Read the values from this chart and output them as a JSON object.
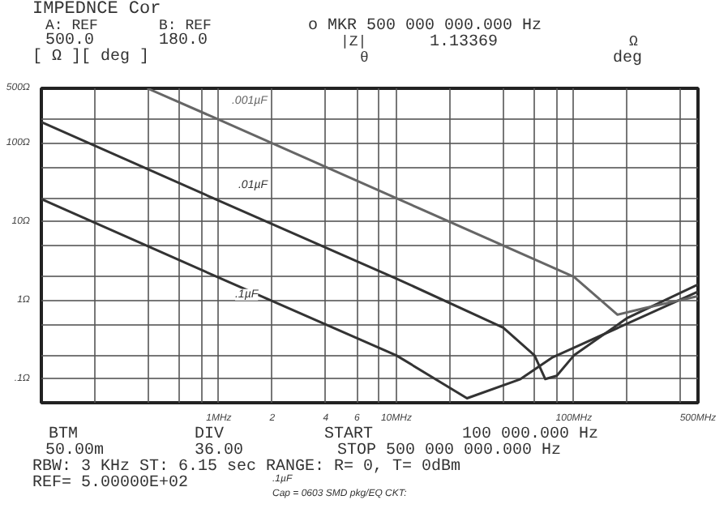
{
  "chart_data": {
    "type": "line",
    "title": "IMPEDNCE Cor",
    "series": [
      {
        "name": ".1µF",
        "color": "#333333",
        "x": [
          0.1,
          1,
          10,
          25,
          50,
          76,
          100,
          500
        ],
        "values": [
          19.5,
          1.95,
          0.2,
          0.057,
          0.1,
          0.19,
          0.25,
          1.3
        ]
      },
      {
        "name": ".01µF",
        "color": "#333333",
        "x": [
          0.1,
          1,
          10,
          40,
          60,
          69,
          80,
          100,
          200,
          500
        ],
        "values": [
          186,
          18.6,
          1.9,
          0.45,
          0.2,
          0.1,
          0.11,
          0.2,
          0.6,
          1.6
        ]
      },
      {
        "name": ".001µF",
        "color": "#666666",
        "x": [
          0.395,
          1,
          10,
          100,
          176,
          250,
          500
        ],
        "values": [
          500,
          200,
          20,
          2,
          0.66,
          0.8,
          1.13369
        ]
      }
    ],
    "log": "xy",
    "xlim": [
      0.1,
      500
    ],
    "ylim": [
      0.05,
      500
    ],
    "xticks": [
      {
        "value": 0.2,
        "label": null
      },
      {
        "value": 0.4,
        "label": null
      },
      {
        "value": 0.6,
        "label": null
      },
      {
        "value": 0.8,
        "label": null
      },
      {
        "value": 1,
        "label": "1MHz"
      },
      {
        "value": 2,
        "label": "2"
      },
      {
        "value": 4,
        "label": "4"
      },
      {
        "value": 6,
        "label": "6"
      },
      {
        "value": 8,
        "label": null
      },
      {
        "value": 10,
        "label": "10MHz"
      },
      {
        "value": 20,
        "label": null
      },
      {
        "value": 40,
        "label": null
      },
      {
        "value": 60,
        "label": null
      },
      {
        "value": 80,
        "label": null
      },
      {
        "value": 100,
        "label": "100MHz"
      },
      {
        "value": 200,
        "label": null
      },
      {
        "value": 400,
        "label": null
      },
      {
        "value": 500,
        "label": "500MHz"
      }
    ],
    "yticks": [
      {
        "value": 0.1,
        "label": ".1Ω"
      },
      {
        "value": 0.2,
        "label": null
      },
      {
        "value": 0.5,
        "label": null
      },
      {
        "value": 1,
        "label": "1Ω"
      },
      {
        "value": 2,
        "label": null
      },
      {
        "value": 5,
        "label": null
      },
      {
        "value": 10,
        "label": "10Ω"
      },
      {
        "value": 20,
        "label": null
      },
      {
        "value": 50,
        "label": null
      },
      {
        "value": 100,
        "label": "100Ω"
      },
      {
        "value": 200,
        "label": null
      },
      {
        "value": 500,
        "label": "500Ω"
      }
    ],
    "grid": true,
    "marker": "none",
    "line_style": "solid",
    "annotations": [
      "A: REF",
      "B: REF",
      "500.0",
      "180.0",
      "[  Ω  ][  deg  ]",
      "o MKR 500 000 000.000 Hz",
      "|Z|",
      "1.13369",
      "Ω",
      "θ",
      "deg",
      "BTM",
      "DIV",
      "START",
      "100 000.000 Hz",
      "50.00m",
      "36.00",
      "STOP 500 000 000.000 Hz",
      "RBW:  3 KHz ST: 6.15 sec RANGE: R=  0, T=  0dBm",
      "REF= 5.00000E+02",
      ".1µF",
      "Cap = 0603 SMD pkg/EQ CKT:"
    ]
  }
}
